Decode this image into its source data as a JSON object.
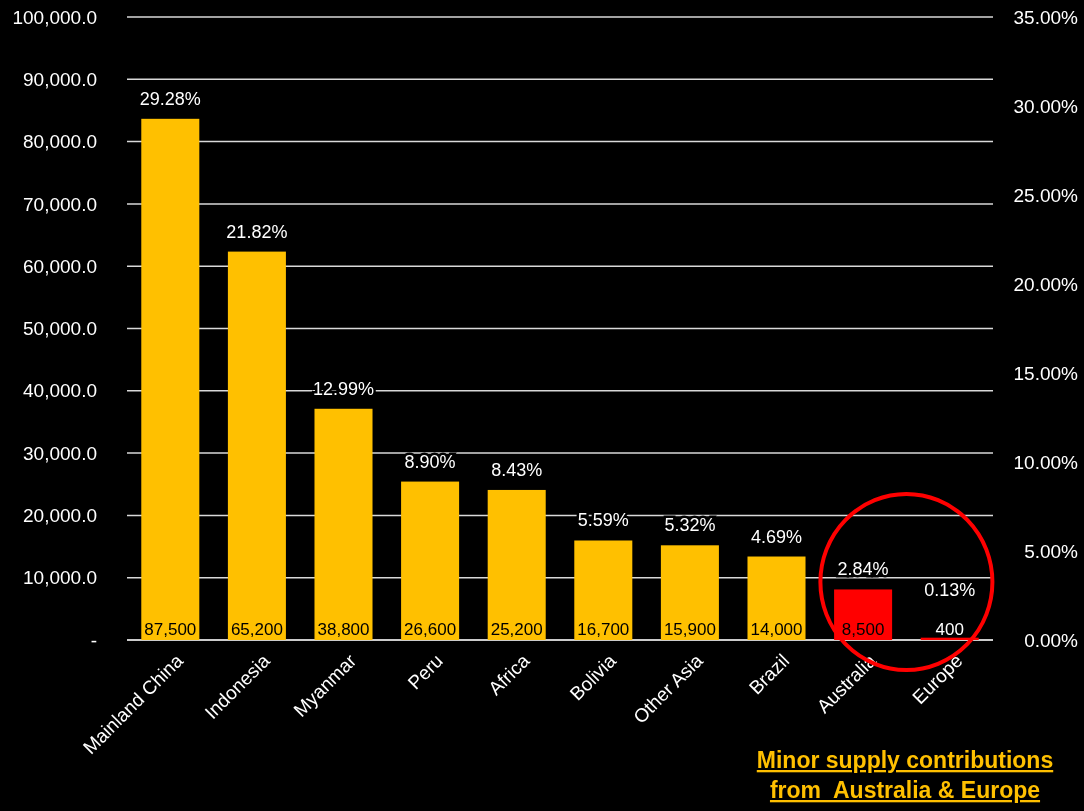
{
  "chart_data": {
    "type": "bar",
    "categories": [
      "Mainland China",
      "Indonesia",
      "Myanmar",
      "Peru",
      "Africa",
      "Bolivia",
      "Other Asia",
      "Brazil",
      "Australia",
      "Europe"
    ],
    "series": [
      {
        "axis": "y2",
        "values": [
          29.28,
          21.82,
          12.99,
          8.9,
          8.43,
          5.59,
          5.32,
          4.69,
          2.84,
          0.13
        ],
        "colors": [
          "#ffc000",
          "#ffc000",
          "#ffc000",
          "#ffc000",
          "#ffc000",
          "#ffc000",
          "#ffc000",
          "#ffc000",
          "#ff0000",
          "#ff0000"
        ],
        "value_labels": [
          "29.28%",
          "21.82%",
          "12.99%",
          "8.90%",
          "8.43%",
          "5.59%",
          "5.32%",
          "4.69%",
          "2.84%",
          "0.13%"
        ]
      }
    ],
    "ylim": [
      0,
      100000
    ],
    "yticks": [
      {
        "value": 0,
        "label": "-"
      },
      {
        "value": 10000,
        "label": "10,000.0"
      },
      {
        "value": 20000,
        "label": "20,000.0"
      },
      {
        "value": 30000,
        "label": "30,000.0"
      },
      {
        "value": 40000,
        "label": "40,000.0"
      },
      {
        "value": 50000,
        "label": "50,000.0"
      },
      {
        "value": 60000,
        "label": "60,000.0"
      },
      {
        "value": 70000,
        "label": "70,000.0"
      },
      {
        "value": 80000,
        "label": "80,000.0"
      },
      {
        "value": 90000,
        "label": "90,000.0"
      },
      {
        "value": 100000,
        "label": "100,000.0"
      }
    ],
    "y2lim": [
      0,
      35
    ],
    "y2ticks": [
      {
        "value": 0,
        "label": "0.00%"
      },
      {
        "value": 5,
        "label": "5.00%"
      },
      {
        "value": 10,
        "label": "10.00%"
      },
      {
        "value": 15,
        "label": "15.00%"
      },
      {
        "value": 20,
        "label": "20.00%"
      },
      {
        "value": 25,
        "label": "25.00%"
      },
      {
        "value": 30,
        "label": "30.00%"
      },
      {
        "value": 35,
        "label": "35.00%"
      }
    ],
    "grid": "y",
    "annotations": [
      "87,500",
      "65,200",
      "38,800",
      "26,600",
      "25,200",
      "16,700",
      "15,900",
      "14,000",
      "8,500",
      "400",
      "Minor supply contributions\nfrom  Australia & Europe"
    ]
  }
}
